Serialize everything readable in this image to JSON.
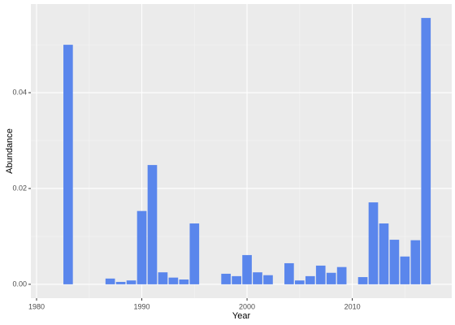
{
  "chart_data": {
    "type": "bar",
    "x_label": "Year",
    "y_label": "Abundance",
    "x": [
      1983,
      1987,
      1988,
      1989,
      1990,
      1991,
      1992,
      1993,
      1994,
      1995,
      1998,
      1999,
      2000,
      2001,
      2002,
      2004,
      2005,
      2006,
      2007,
      2008,
      2009,
      2011,
      2012,
      2013,
      2014,
      2015,
      2016,
      2017
    ],
    "values": [
      0.05,
      0.0012,
      0.0005,
      0.0008,
      0.0153,
      0.0249,
      0.0025,
      0.0014,
      0.001,
      0.0127,
      0.0022,
      0.0017,
      0.0061,
      0.0025,
      0.0019,
      0.0044,
      0.0008,
      0.0017,
      0.0039,
      0.0024,
      0.0036,
      0.0015,
      0.0171,
      0.0127,
      0.0093,
      0.0058,
      0.0092,
      0.0556
    ],
    "color": "#5a86ec",
    "bar_width": 0.9,
    "xlim": [
      1979.46,
      2019.45
    ],
    "xticks": [
      1980,
      1990,
      2000,
      2010
    ],
    "ylim": [
      -0.0029,
      0.0585
    ],
    "yticks": [
      {
        "value": 0,
        "label": "0.00"
      },
      {
        "value": 0.02,
        "label": "0.02"
      },
      {
        "value": 0.04,
        "label": "0.04"
      }
    ],
    "grid": true
  }
}
